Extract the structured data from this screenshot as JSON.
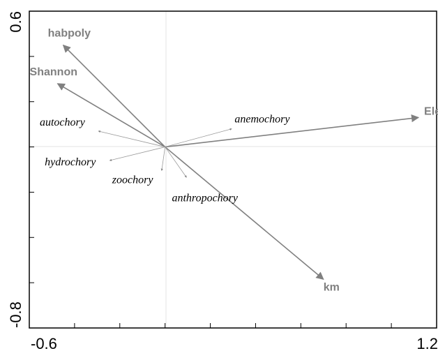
{
  "chart_data": {
    "type": "biplot",
    "title": "",
    "xlabel": "",
    "ylabel": "",
    "xlim": [
      -0.6,
      1.2
    ],
    "ylim": [
      -0.8,
      0.6
    ],
    "x_tick_labels": [
      "-0.6",
      "1.2"
    ],
    "y_tick_labels": [
      "0.6",
      "-0.8"
    ],
    "grid": false,
    "colors": {
      "environmental": "#808080",
      "species": "#808080",
      "axes_lines": "#e3e3e3"
    },
    "environmental_vectors": [
      {
        "name": "habpoly",
        "x": -0.45,
        "y": 0.45
      },
      {
        "name": "Shannon",
        "x": -0.475,
        "y": 0.28
      },
      {
        "name": "Elev",
        "x": 1.12,
        "y": 0.13
      },
      {
        "name": "km",
        "x": 0.7,
        "y": -0.585
      }
    ],
    "species_vectors": [
      {
        "name": "autochory",
        "x": -0.295,
        "y": 0.07
      },
      {
        "name": "anemochory",
        "x": 0.295,
        "y": 0.08
      },
      {
        "name": "hydrochory",
        "x": -0.245,
        "y": -0.06
      },
      {
        "name": "zoochory",
        "x": -0.015,
        "y": -0.105
      },
      {
        "name": "anthropochory",
        "x": 0.095,
        "y": -0.135
      }
    ]
  }
}
